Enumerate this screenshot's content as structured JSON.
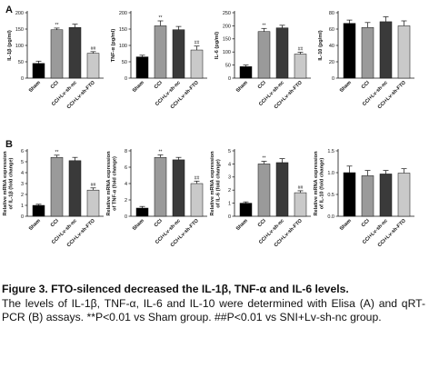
{
  "panels": {
    "a": "A",
    "b": "B"
  },
  "categories": [
    "Sham",
    "CCI",
    "CCI+Lv-sh-nc",
    "CCI+Lv-sh-FTO"
  ],
  "colors": {
    "sham": "#000000",
    "cci": "#9a9a9a",
    "nc": "#3a3a3a",
    "fto": "#c9c9c9"
  },
  "chart_data": [
    {
      "type": "bar",
      "row": "A",
      "ylabel": "IL-1β (pg/ml)",
      "ylim": [
        0,
        200
      ],
      "yticks": [
        0,
        50,
        100,
        150,
        200
      ],
      "values": [
        45,
        148,
        155,
        76
      ],
      "errors": [
        7,
        5,
        10,
        5
      ],
      "sig": [
        "",
        "**",
        "",
        "##"
      ]
    },
    {
      "type": "bar",
      "row": "A",
      "ylabel": "TNF-α (pg/ml)",
      "ylim": [
        0,
        200
      ],
      "yticks": [
        0,
        50,
        100,
        150,
        200
      ],
      "values": [
        65,
        160,
        148,
        86
      ],
      "errors": [
        5,
        15,
        10,
        12
      ],
      "sig": [
        "",
        "**",
        "",
        "##"
      ]
    },
    {
      "type": "bar",
      "row": "A",
      "ylabel": "IL-6 (pg/ml)",
      "ylim": [
        0,
        250
      ],
      "yticks": [
        0,
        50,
        100,
        150,
        200,
        250
      ],
      "values": [
        44,
        178,
        192,
        92
      ],
      "errors": [
        6,
        12,
        10,
        7
      ],
      "sig": [
        "",
        "**",
        "",
        "##"
      ]
    },
    {
      "type": "bar",
      "row": "A",
      "ylabel": "IL-10 (pg/ml)",
      "ylim": [
        0,
        80
      ],
      "yticks": [
        0,
        20,
        40,
        60,
        80
      ],
      "values": [
        67,
        62,
        69,
        64
      ],
      "errors": [
        4,
        6,
        6,
        6
      ],
      "sig": [
        "",
        "",
        "",
        ""
      ]
    },
    {
      "type": "bar",
      "row": "B",
      "ylabel": "Relative mRNA expression of IL-1β (fold change)",
      "ylim": [
        0,
        6
      ],
      "yticks": [
        0,
        1,
        2,
        3,
        4,
        5,
        6
      ],
      "values": [
        1.0,
        5.4,
        5.1,
        2.4
      ],
      "errors": [
        0.1,
        0.2,
        0.3,
        0.2
      ],
      "sig": [
        "",
        "**",
        "",
        "##"
      ]
    },
    {
      "type": "bar",
      "row": "B",
      "ylabel": "Relative mRNA expression of TNF-α (fold change)",
      "ylim": [
        0,
        8
      ],
      "yticks": [
        0,
        2,
        4,
        6,
        8
      ],
      "values": [
        1.0,
        7.2,
        6.9,
        4.0
      ],
      "errors": [
        0.2,
        0.3,
        0.3,
        0.3
      ],
      "sig": [
        "",
        "**",
        "",
        "##"
      ]
    },
    {
      "type": "bar",
      "row": "B",
      "ylabel": "Relative mRNA expression of IL-6 (fold change)",
      "ylim": [
        0,
        5
      ],
      "yticks": [
        0,
        1,
        2,
        3,
        4,
        5
      ],
      "values": [
        1.0,
        4.0,
        4.1,
        1.8
      ],
      "errors": [
        0.1,
        0.2,
        0.3,
        0.15
      ],
      "sig": [
        "",
        "**",
        "",
        "##"
      ]
    },
    {
      "type": "bar",
      "row": "B",
      "ylabel": "Relative mRNA expression of IL-10 (fold change)",
      "ylim": [
        0,
        1.5
      ],
      "yticks": [
        0.0,
        0.5,
        1.0,
        1.5
      ],
      "values": [
        1.0,
        0.93,
        0.97,
        0.99
      ],
      "errors": [
        0.15,
        0.12,
        0.08,
        0.1
      ],
      "sig": [
        "",
        "",
        "",
        ""
      ]
    }
  ],
  "caption": {
    "title": "Figure 3. FTO-silenced decreased the IL-1β, TNF-α and IL-6 levels.",
    "body": "The levels of IL-1β, TNF-α, IL-6 and IL-10 were determined with Elisa (A) and qRT-PCR (B) assays. **P<0.01 vs Sham group. ##P<0.01 vs SNI+Lv-sh-nc group."
  }
}
